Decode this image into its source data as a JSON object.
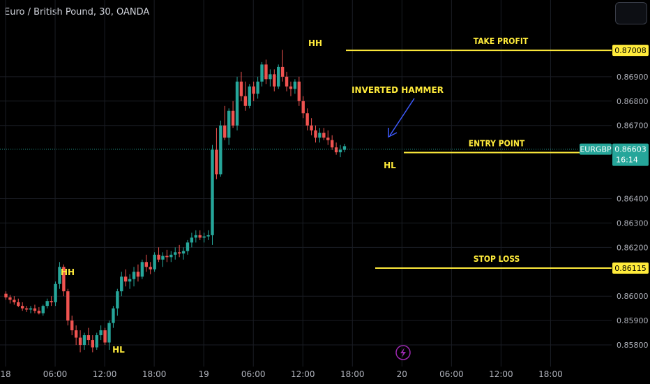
{
  "header": {
    "symbol_title": "Euro / British Pound, 30, OANDA"
  },
  "colors": {
    "background": "#000000",
    "bull": "#26a69a",
    "bear": "#ef5350",
    "annotation": "#ffeb3b",
    "arrow": "#3d5afe",
    "axis_text": "#b2b5be",
    "grid": "#1a1d24",
    "lightning": "#9c27b0"
  },
  "chart_data": {
    "type": "candlestick",
    "symbol": "EURGBP",
    "timeframe": "30",
    "x_ticks": [
      {
        "label": "18",
        "slot": 0
      },
      {
        "label": "06:00",
        "slot": 12
      },
      {
        "label": "12:00",
        "slot": 24
      },
      {
        "label": "18:00",
        "slot": 36
      },
      {
        "label": "19",
        "slot": 48
      },
      {
        "label": "06:00",
        "slot": 60
      },
      {
        "label": "12:00",
        "slot": 72
      },
      {
        "label": "18:00",
        "slot": 84
      },
      {
        "label": "20",
        "slot": 96
      },
      {
        "label": "06:00",
        "slot": 108
      },
      {
        "label": "12:00",
        "slot": 120
      },
      {
        "label": "18:00",
        "slot": 132
      }
    ],
    "y_ticks": [
      "0.86900",
      "0.86800",
      "0.86700",
      "0.86400",
      "0.86300",
      "0.86200",
      "0.86000",
      "0.85900",
      "0.85800"
    ],
    "ylim": [
      0.8574,
      0.871
    ],
    "candles": [
      [
        0.8601,
        0.8602,
        0.85985,
        0.85995
      ],
      [
        0.85995,
        0.86005,
        0.8597,
        0.85985
      ],
      [
        0.85985,
        0.86,
        0.85965,
        0.85975
      ],
      [
        0.85975,
        0.8599,
        0.85955,
        0.8596
      ],
      [
        0.8596,
        0.85975,
        0.8594,
        0.8595
      ],
      [
        0.8595,
        0.8596,
        0.85935,
        0.85945
      ],
      [
        0.85945,
        0.8596,
        0.8593,
        0.8595
      ],
      [
        0.8595,
        0.85965,
        0.8593,
        0.8594
      ],
      [
        0.8594,
        0.85955,
        0.85925,
        0.8593
      ],
      [
        0.8593,
        0.85965,
        0.8592,
        0.8596
      ],
      [
        0.8596,
        0.8599,
        0.8595,
        0.8598
      ],
      [
        0.8598,
        0.86,
        0.8596,
        0.85975
      ],
      [
        0.85975,
        0.8606,
        0.8596,
        0.8605
      ],
      [
        0.8605,
        0.8614,
        0.8603,
        0.8612
      ],
      [
        0.8612,
        0.8613,
        0.86,
        0.8602
      ],
      [
        0.8602,
        0.8603,
        0.8588,
        0.859
      ],
      [
        0.859,
        0.8592,
        0.8584,
        0.8586
      ],
      [
        0.8586,
        0.8588,
        0.858,
        0.8583
      ],
      [
        0.8583,
        0.8586,
        0.8577,
        0.858
      ],
      [
        0.858,
        0.8585,
        0.8578,
        0.8584
      ],
      [
        0.8584,
        0.8587,
        0.858,
        0.8582
      ],
      [
        0.8582,
        0.8584,
        0.8577,
        0.8579
      ],
      [
        0.8579,
        0.8585,
        0.8578,
        0.8584
      ],
      [
        0.8584,
        0.8588,
        0.8582,
        0.8586
      ],
      [
        0.8586,
        0.8587,
        0.858,
        0.8581
      ],
      [
        0.8581,
        0.859,
        0.8578,
        0.8589
      ],
      [
        0.8589,
        0.8596,
        0.8587,
        0.8595
      ],
      [
        0.8595,
        0.8603,
        0.8592,
        0.8602
      ],
      [
        0.8602,
        0.861,
        0.86,
        0.8608
      ],
      [
        0.8608,
        0.8611,
        0.8604,
        0.8606
      ],
      [
        0.8606,
        0.8609,
        0.8603,
        0.8607
      ],
      [
        0.8607,
        0.8612,
        0.8604,
        0.861
      ],
      [
        0.861,
        0.8613,
        0.8606,
        0.8608
      ],
      [
        0.8608,
        0.8615,
        0.8607,
        0.8614
      ],
      [
        0.8614,
        0.8617,
        0.861,
        0.8612
      ],
      [
        0.8612,
        0.8614,
        0.8609,
        0.8611
      ],
      [
        0.8611,
        0.8618,
        0.861,
        0.8617
      ],
      [
        0.8617,
        0.862,
        0.8614,
        0.8615
      ],
      [
        0.8615,
        0.8618,
        0.8612,
        0.86165
      ],
      [
        0.86165,
        0.8619,
        0.8614,
        0.8616
      ],
      [
        0.8616,
        0.86185,
        0.8614,
        0.8617
      ],
      [
        0.8617,
        0.862,
        0.8615,
        0.8618
      ],
      [
        0.8618,
        0.8621,
        0.8616,
        0.86175
      ],
      [
        0.86175,
        0.862,
        0.8615,
        0.86185
      ],
      [
        0.86185,
        0.8623,
        0.8617,
        0.8622
      ],
      [
        0.8622,
        0.8626,
        0.862,
        0.8624
      ],
      [
        0.8624,
        0.8627,
        0.8622,
        0.8625
      ],
      [
        0.8625,
        0.8627,
        0.8623,
        0.8624
      ],
      [
        0.8624,
        0.8626,
        0.8622,
        0.86245
      ],
      [
        0.86245,
        0.8627,
        0.8623,
        0.8625
      ],
      [
        0.8625,
        0.8662,
        0.8621,
        0.866
      ],
      [
        0.866,
        0.8669,
        0.8648,
        0.865
      ],
      [
        0.865,
        0.8672,
        0.8649,
        0.867
      ],
      [
        0.867,
        0.8678,
        0.8664,
        0.8665
      ],
      [
        0.8665,
        0.8677,
        0.8662,
        0.8676
      ],
      [
        0.8676,
        0.868,
        0.8669,
        0.867
      ],
      [
        0.867,
        0.869,
        0.8668,
        0.8688
      ],
      [
        0.8688,
        0.8692,
        0.868,
        0.8682
      ],
      [
        0.8682,
        0.8688,
        0.8676,
        0.8678
      ],
      [
        0.8678,
        0.8687,
        0.8677,
        0.8686
      ],
      [
        0.8686,
        0.8688,
        0.868,
        0.8683
      ],
      [
        0.8683,
        0.869,
        0.8681,
        0.8688
      ],
      [
        0.8688,
        0.8696,
        0.8686,
        0.8695
      ],
      [
        0.8695,
        0.8697,
        0.8687,
        0.8689
      ],
      [
        0.8689,
        0.8693,
        0.8686,
        0.8691
      ],
      [
        0.8691,
        0.8693,
        0.8684,
        0.8686
      ],
      [
        0.8686,
        0.8695,
        0.8685,
        0.8694
      ],
      [
        0.8694,
        0.8701,
        0.8688,
        0.869
      ],
      [
        0.869,
        0.8692,
        0.8684,
        0.8686
      ],
      [
        0.8686,
        0.8688,
        0.8682,
        0.8685
      ],
      [
        0.8685,
        0.8689,
        0.8683,
        0.8688
      ],
      [
        0.8688,
        0.869,
        0.8678,
        0.868
      ],
      [
        0.868,
        0.8682,
        0.8673,
        0.8675
      ],
      [
        0.8675,
        0.8677,
        0.8668,
        0.867
      ],
      [
        0.867,
        0.8673,
        0.8666,
        0.8668
      ],
      [
        0.8668,
        0.867,
        0.8663,
        0.8665
      ],
      [
        0.8665,
        0.8669,
        0.8663,
        0.8667
      ],
      [
        0.8667,
        0.8669,
        0.8664,
        0.8665
      ],
      [
        0.8665,
        0.8668,
        0.8662,
        0.8664
      ],
      [
        0.8664,
        0.8666,
        0.866,
        0.8661
      ],
      [
        0.8661,
        0.8663,
        0.8658,
        0.8659
      ],
      [
        0.8659,
        0.8662,
        0.8657,
        0.866
      ],
      [
        0.866,
        0.86625,
        0.8659,
        0.86615
      ]
    ],
    "annotations": {
      "hh_left": "HH",
      "hl_left": "HL",
      "hh_top": "HH",
      "hl_right": "HL",
      "inverted_hammer": "INVERTED HAMMER",
      "take_profit": {
        "label": "TAKE PROFIT",
        "price": "0.87008",
        "value": 0.87008
      },
      "entry_point": {
        "label": "ENTRY POINT",
        "price": "0.86589",
        "value": 0.86589
      },
      "stop_loss": {
        "label": "STOP LOSS",
        "price": "0.86115",
        "value": 0.86115
      }
    },
    "current_price": {
      "symbol": "EURGBP",
      "price": "0.86603",
      "countdown": "16:14",
      "value": 0.86603
    }
  }
}
